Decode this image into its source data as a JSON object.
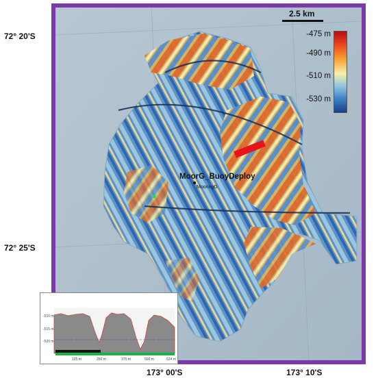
{
  "map": {
    "latitude_labels": [
      "72° 20'S",
      "72° 25'S"
    ],
    "longitude_labels": [
      "173° 00'S",
      "173° 10'S"
    ],
    "scale_bar": "2.5 km",
    "legend": {
      "labels": [
        "-475 m",
        "-490 m",
        "-510 m",
        "-530 m"
      ],
      "colors": [
        "#b40f14",
        "#f7a030",
        "#f6eea8",
        "#3b7ec2",
        "#1c3f8a"
      ]
    },
    "site_label": "MoorG_BuoyDeploy",
    "site_sublabel": "MooringG",
    "frame_color": "#7a3aa8",
    "deployment_line_color": "#e8141a",
    "point_marker_color": "#19e04a"
  },
  "profile": {
    "y_tick_labels": [
      "-510 m",
      "-515 m",
      "-520 m"
    ],
    "x_tick_labels": [
      "125 m",
      "250 m",
      "375 m",
      "500 m",
      "624 m"
    ],
    "bar_colors": [
      "#111111",
      "#1bb24b"
    ]
  }
}
